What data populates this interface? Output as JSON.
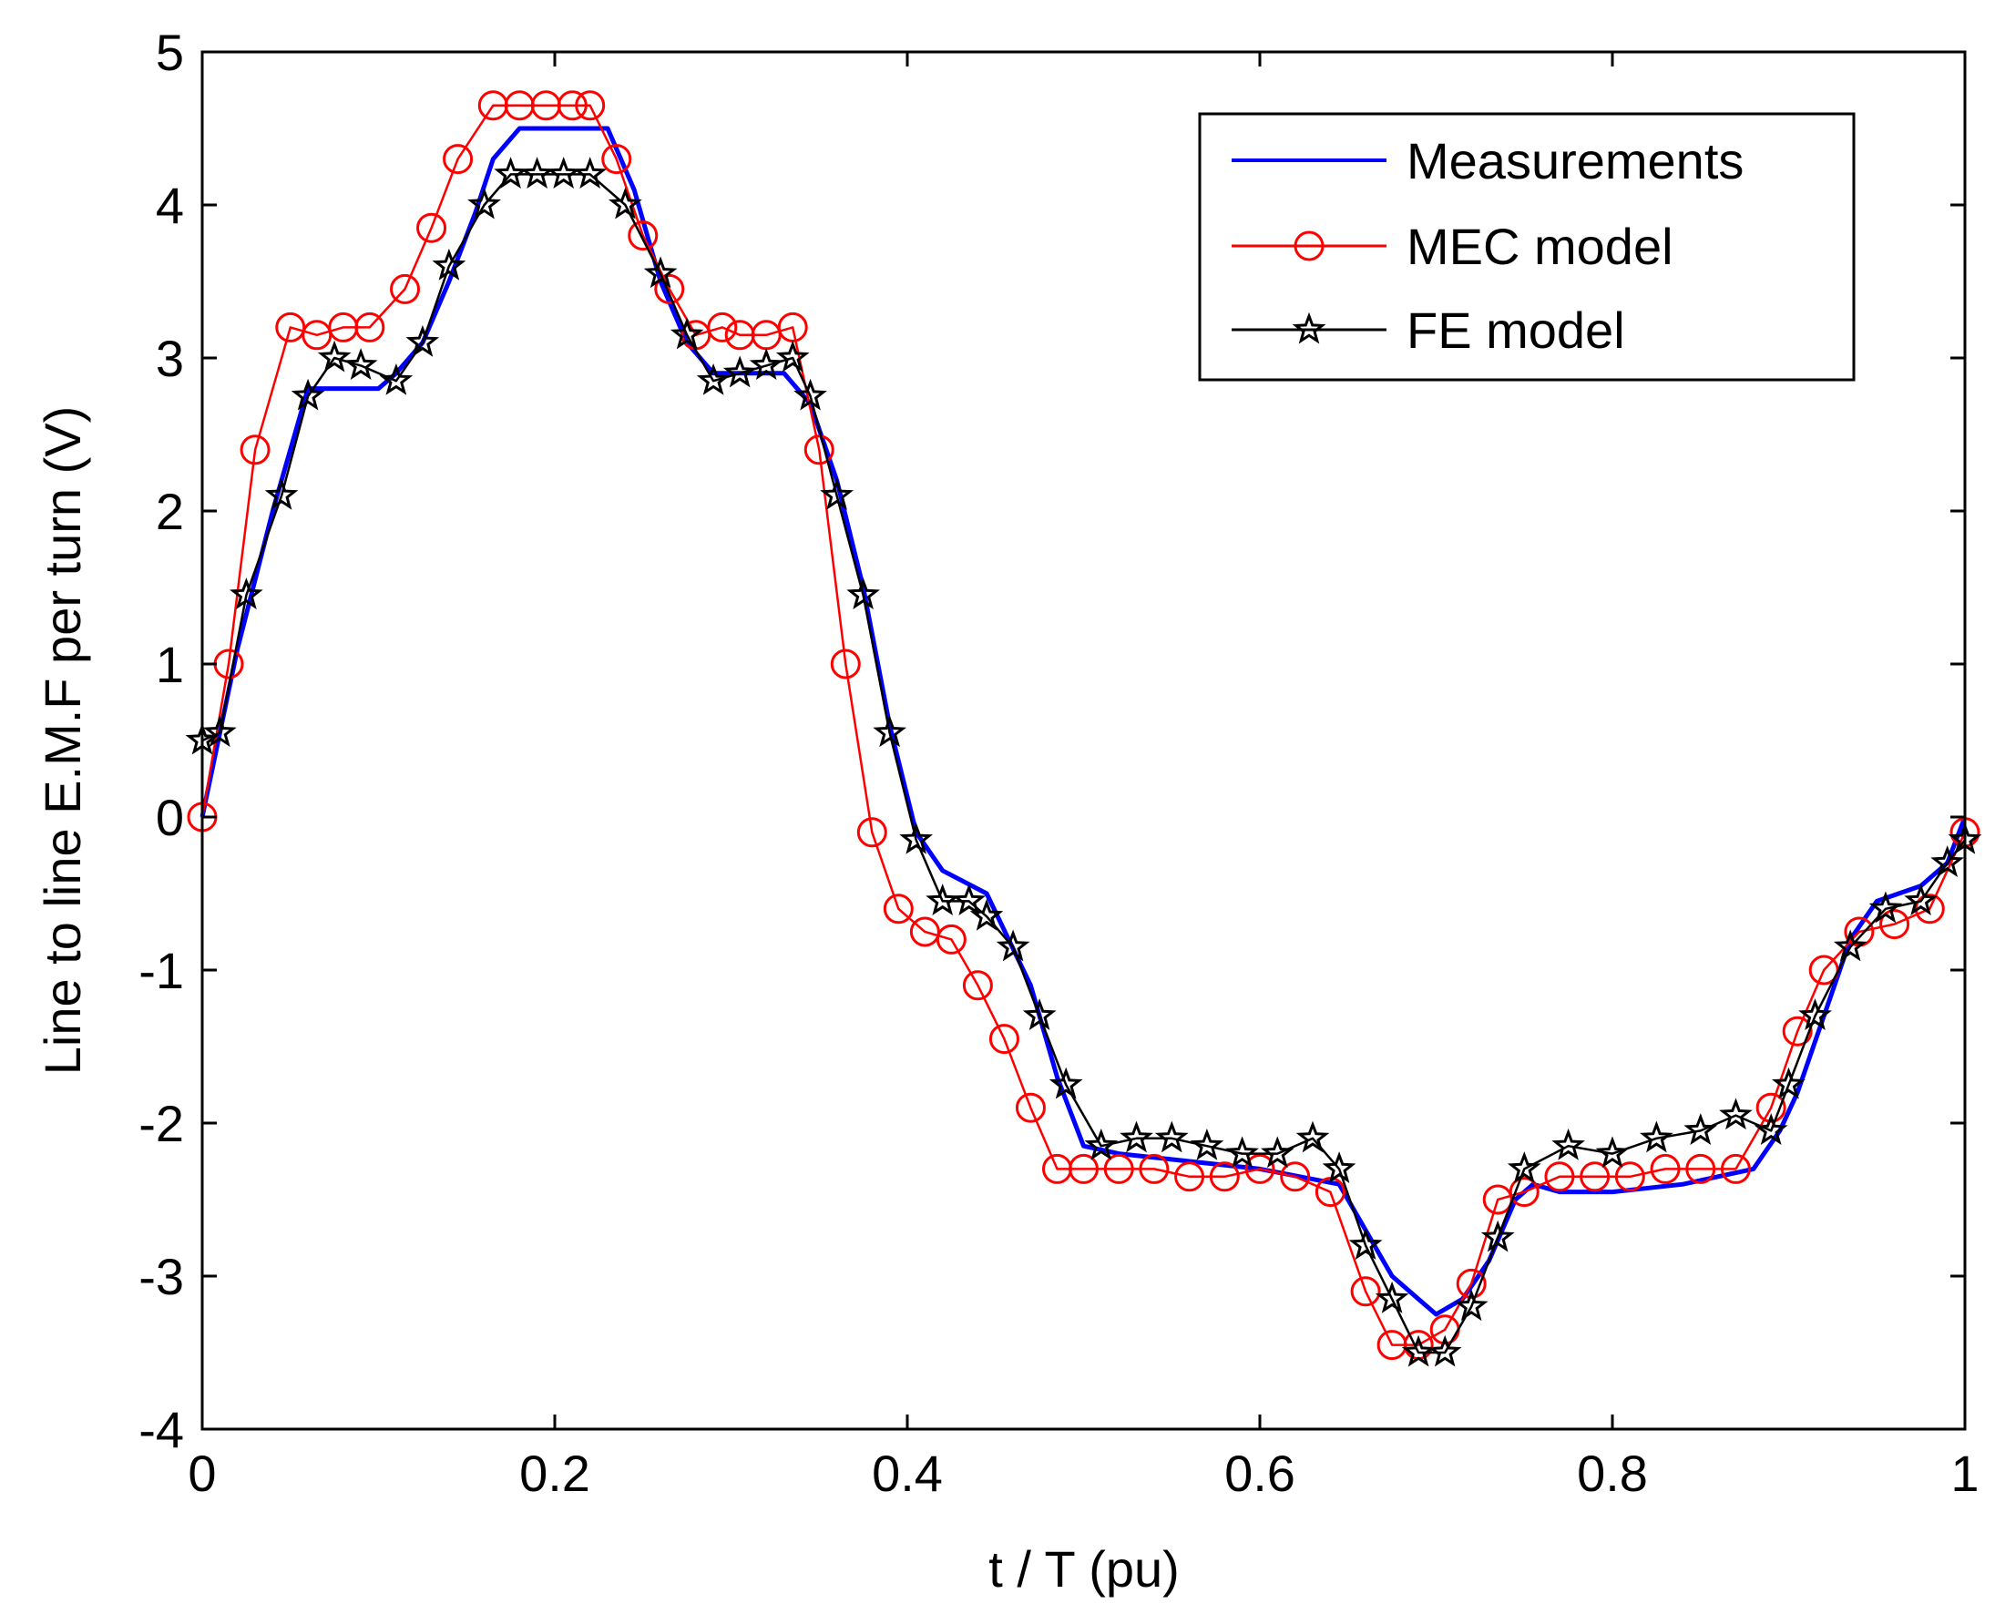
{
  "chart_data": {
    "type": "line",
    "title": "",
    "xlabel": "t / T (pu)",
    "ylabel": "Line to line E.M.F per turn (V)",
    "xlim": [
      0,
      1
    ],
    "ylim": [
      -4,
      5
    ],
    "xticks": [
      0,
      0.2,
      0.4,
      0.6,
      0.8,
      1
    ],
    "xtick_labels": [
      "0",
      "0.2",
      "0.4",
      "0.6",
      "0.8",
      "1"
    ],
    "yticks": [
      -4,
      -3,
      -2,
      -1,
      0,
      1,
      2,
      3,
      4,
      5
    ],
    "ytick_labels": [
      "-4",
      "-3",
      "-2",
      "-1",
      "0",
      "1",
      "2",
      "3",
      "4",
      "5"
    ],
    "grid": false,
    "legend_position": "top-right",
    "series": [
      {
        "name": "Measurements",
        "color": "#0000ff",
        "marker": "none",
        "x": [
          0,
          0.02,
          0.04,
          0.055,
          0.06,
          0.07,
          0.1,
          0.11,
          0.125,
          0.14,
          0.155,
          0.165,
          0.18,
          0.21,
          0.23,
          0.245,
          0.26,
          0.275,
          0.29,
          0.31,
          0.33,
          0.345,
          0.36,
          0.375,
          0.39,
          0.405,
          0.42,
          0.445,
          0.47,
          0.485,
          0.5,
          0.52,
          0.56,
          0.6,
          0.645,
          0.66,
          0.675,
          0.69,
          0.7,
          0.715,
          0.73,
          0.745,
          0.755,
          0.77,
          0.8,
          0.84,
          0.88,
          0.895,
          0.905,
          0.92,
          0.935,
          0.95,
          0.975,
          0.99,
          1.0
        ],
        "y": [
          0,
          1.1,
          2.0,
          2.6,
          2.8,
          2.8,
          2.8,
          2.9,
          3.1,
          3.5,
          3.95,
          4.3,
          4.5,
          4.5,
          4.5,
          4.1,
          3.5,
          3.1,
          2.9,
          2.9,
          2.9,
          2.7,
          2.2,
          1.5,
          0.6,
          -0.1,
          -0.35,
          -0.5,
          -1.1,
          -1.7,
          -2.15,
          -2.2,
          -2.25,
          -2.3,
          -2.4,
          -2.7,
          -3.0,
          -3.15,
          -3.25,
          -3.15,
          -2.9,
          -2.5,
          -2.4,
          -2.45,
          -2.45,
          -2.4,
          -2.3,
          -2.05,
          -1.8,
          -1.3,
          -0.8,
          -0.55,
          -0.45,
          -0.3,
          0.0
        ]
      },
      {
        "name": "MEC model",
        "color": "#ff0000",
        "marker": "circle",
        "x": [
          0,
          0.015,
          0.03,
          0.05,
          0.065,
          0.08,
          0.095,
          0.115,
          0.13,
          0.145,
          0.165,
          0.18,
          0.195,
          0.21,
          0.22,
          0.235,
          0.25,
          0.265,
          0.28,
          0.295,
          0.305,
          0.32,
          0.335,
          0.35,
          0.365,
          0.38,
          0.395,
          0.41,
          0.425,
          0.44,
          0.455,
          0.47,
          0.485,
          0.5,
          0.52,
          0.54,
          0.56,
          0.58,
          0.6,
          0.62,
          0.64,
          0.66,
          0.675,
          0.69,
          0.705,
          0.72,
          0.735,
          0.75,
          0.77,
          0.79,
          0.81,
          0.83,
          0.85,
          0.87,
          0.89,
          0.905,
          0.92,
          0.94,
          0.96,
          0.98,
          1.0
        ],
        "y": [
          0,
          1.0,
          2.4,
          3.2,
          3.15,
          3.2,
          3.2,
          3.45,
          3.85,
          4.3,
          4.65,
          4.65,
          4.65,
          4.65,
          4.65,
          4.3,
          3.8,
          3.45,
          3.15,
          3.2,
          3.15,
          3.15,
          3.2,
          2.4,
          1.0,
          -0.1,
          -0.6,
          -0.75,
          -0.8,
          -1.1,
          -1.45,
          -1.9,
          -2.3,
          -2.3,
          -2.3,
          -2.3,
          -2.35,
          -2.35,
          -2.3,
          -2.35,
          -2.45,
          -3.1,
          -3.45,
          -3.45,
          -3.35,
          -3.05,
          -2.5,
          -2.45,
          -2.35,
          -2.35,
          -2.35,
          -2.3,
          -2.3,
          -2.3,
          -1.9,
          -1.4,
          -1.0,
          -0.75,
          -0.7,
          -0.6,
          -0.1
        ]
      },
      {
        "name": "FE model",
        "color": "#000000",
        "marker": "star",
        "x": [
          0,
          0.01,
          0.025,
          0.045,
          0.06,
          0.075,
          0.09,
          0.11,
          0.125,
          0.14,
          0.16,
          0.175,
          0.19,
          0.205,
          0.22,
          0.24,
          0.26,
          0.275,
          0.29,
          0.305,
          0.32,
          0.335,
          0.345,
          0.36,
          0.375,
          0.39,
          0.405,
          0.42,
          0.435,
          0.445,
          0.46,
          0.475,
          0.49,
          0.51,
          0.53,
          0.55,
          0.57,
          0.59,
          0.61,
          0.63,
          0.645,
          0.66,
          0.675,
          0.69,
          0.705,
          0.72,
          0.735,
          0.75,
          0.775,
          0.8,
          0.825,
          0.85,
          0.87,
          0.89,
          0.9,
          0.915,
          0.935,
          0.955,
          0.975,
          0.99,
          1.0
        ],
        "y": [
          0.5,
          0.55,
          1.45,
          2.1,
          2.75,
          3.0,
          2.95,
          2.85,
          3.1,
          3.6,
          4.0,
          4.2,
          4.2,
          4.2,
          4.2,
          4.0,
          3.55,
          3.15,
          2.85,
          2.9,
          2.95,
          3.0,
          2.75,
          2.1,
          1.45,
          0.55,
          -0.15,
          -0.55,
          -0.55,
          -0.65,
          -0.85,
          -1.3,
          -1.75,
          -2.15,
          -2.1,
          -2.1,
          -2.15,
          -2.2,
          -2.2,
          -2.1,
          -2.3,
          -2.8,
          -3.15,
          -3.5,
          -3.5,
          -3.2,
          -2.75,
          -2.3,
          -2.15,
          -2.2,
          -2.1,
          -2.05,
          -1.95,
          -2.05,
          -1.75,
          -1.3,
          -0.85,
          -0.6,
          -0.55,
          -0.3,
          -0.15
        ]
      }
    ]
  }
}
